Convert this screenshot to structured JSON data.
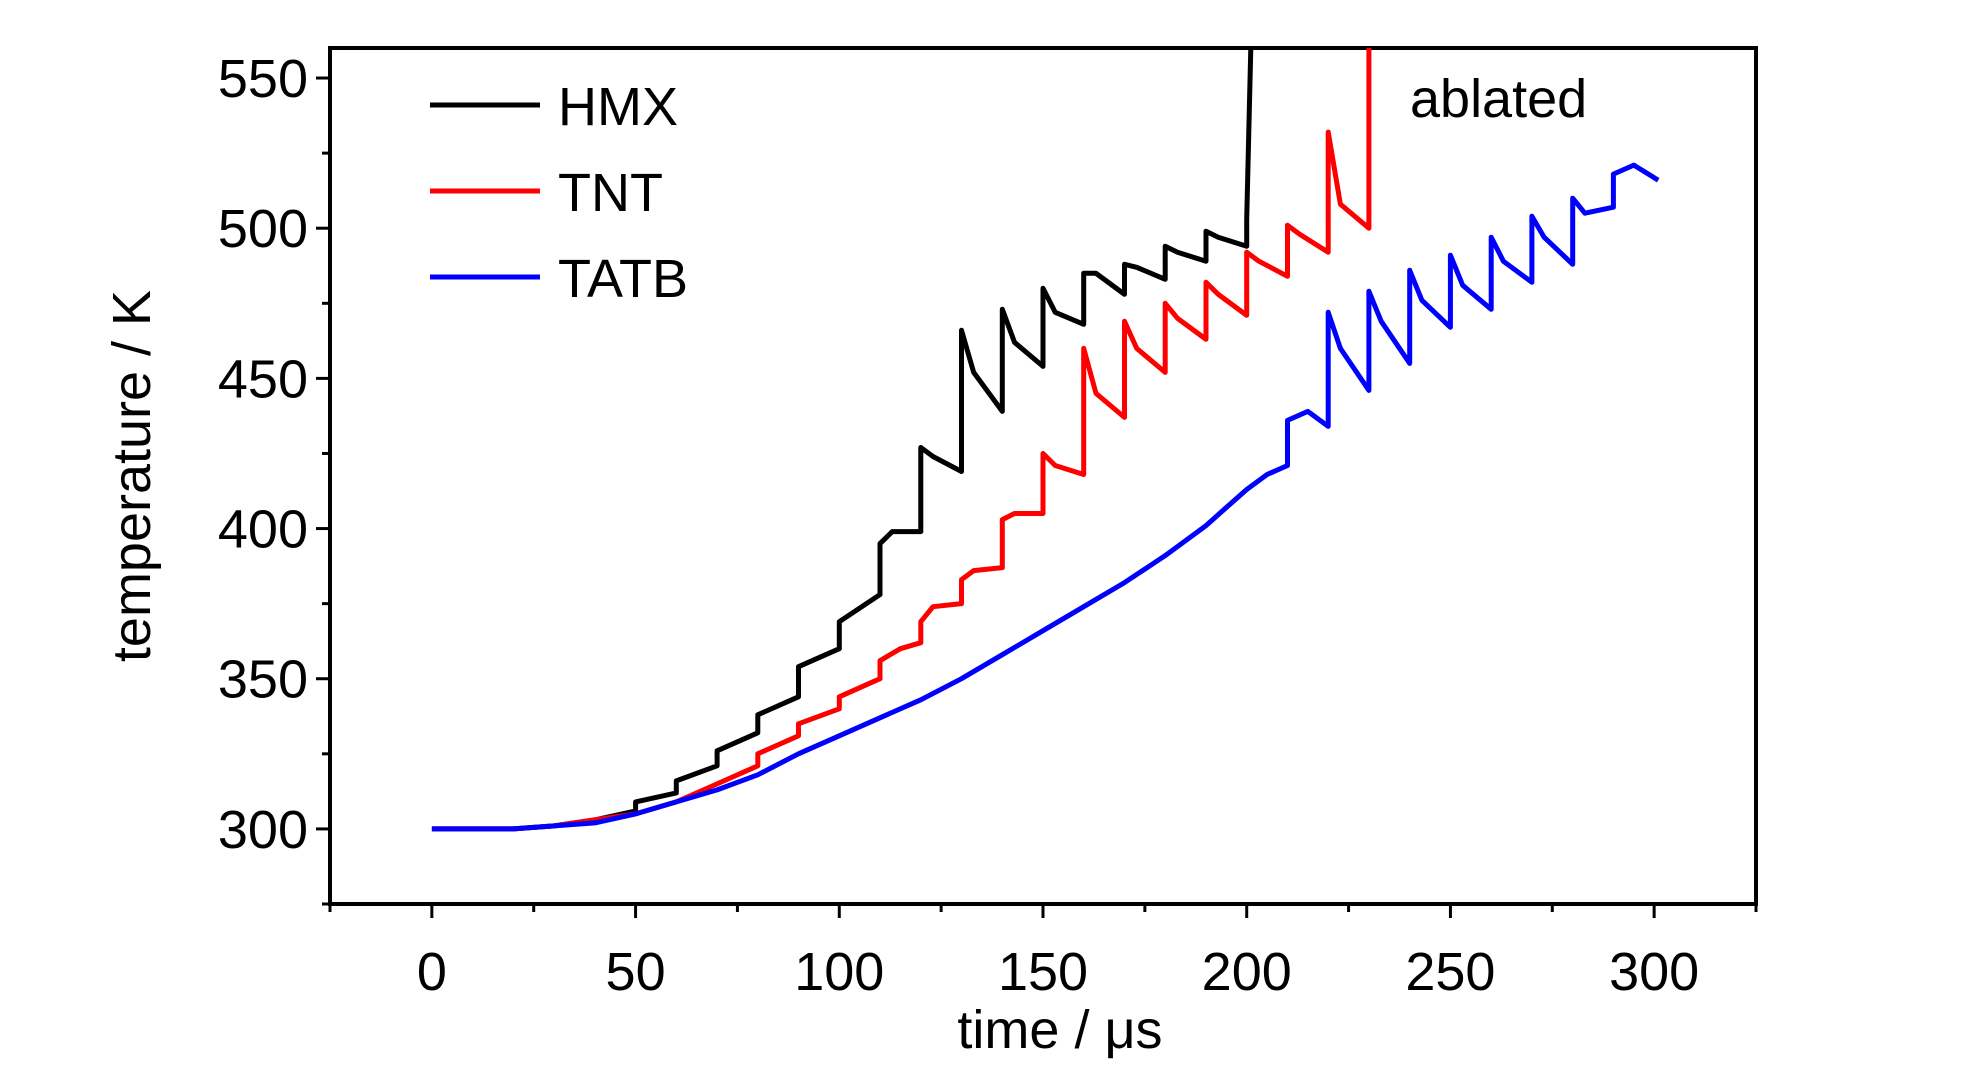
{
  "chart_data": {
    "type": "line",
    "title": "",
    "xlabel": "time / μs",
    "ylabel": "temperature / K",
    "xlim": [
      -25,
      325
    ],
    "ylim": [
      275,
      560
    ],
    "xticks": [
      0,
      50,
      100,
      150,
      200,
      250,
      300
    ],
    "yticks": [
      300,
      350,
      400,
      450,
      500,
      550
    ],
    "grid": false,
    "legend_position": "top-left",
    "annotations": [
      {
        "text": "ablated",
        "x": 258,
        "y": 543
      }
    ],
    "series": [
      {
        "name": "HMX",
        "color": "#000000",
        "x": [
          0,
          20,
          30,
          40,
          50,
          50,
          60,
          60,
          70,
          70,
          80,
          80,
          90,
          90,
          100,
          100,
          110,
          110,
          113,
          120,
          120,
          123,
          130,
          130,
          133,
          140,
          140,
          143,
          150,
          150,
          153,
          160,
          160,
          163,
          170,
          170,
          173,
          180,
          180,
          183,
          190,
          190,
          193,
          200,
          200,
          201
        ],
        "y": [
          300,
          300,
          301,
          303,
          306,
          309,
          312,
          316,
          321,
          326,
          332,
          338,
          344,
          354,
          360,
          369,
          378,
          395,
          399,
          399,
          427,
          424,
          419,
          466,
          452,
          439,
          473,
          462,
          454,
          480,
          472,
          468,
          485,
          485,
          478,
          488,
          487,
          483,
          494,
          492,
          489,
          499,
          497,
          494,
          503,
          560
        ]
      },
      {
        "name": "TNT",
        "color": "#ff0000",
        "x": [
          0,
          20,
          30,
          40,
          50,
          60,
          70,
          80,
          80,
          90,
          90,
          100,
          100,
          110,
          110,
          115,
          120,
          120,
          123,
          130,
          130,
          133,
          140,
          140,
          143,
          150,
          150,
          153,
          160,
          160,
          163,
          170,
          170,
          173,
          180,
          180,
          183,
          190,
          190,
          193,
          200,
          200,
          203,
          210,
          210,
          213,
          220,
          220,
          223,
          230,
          230
        ],
        "y": [
          300,
          300,
          301,
          303,
          305,
          309,
          315,
          321,
          325,
          331,
          335,
          340,
          344,
          350,
          356,
          360,
          362,
          369,
          374,
          375,
          383,
          386,
          387,
          403,
          405,
          405,
          425,
          421,
          418,
          460,
          445,
          437,
          469,
          460,
          452,
          475,
          470,
          463,
          482,
          478,
          471,
          492,
          489,
          484,
          501,
          498,
          492,
          532,
          508,
          500,
          560
        ]
      },
      {
        "name": "TATB",
        "color": "#0000ff",
        "x": [
          0,
          20,
          30,
          40,
          50,
          60,
          70,
          80,
          90,
          100,
          110,
          120,
          130,
          140,
          150,
          160,
          170,
          180,
          185,
          190,
          195,
          200,
          205,
          210,
          210,
          215,
          220,
          220,
          223,
          230,
          230,
          233,
          240,
          240,
          243,
          250,
          250,
          253,
          260,
          260,
          263,
          270,
          270,
          273,
          280,
          280,
          283,
          290,
          290,
          295,
          301
        ],
        "y": [
          300,
          300,
          301,
          302,
          305,
          309,
          313,
          318,
          325,
          331,
          337,
          343,
          350,
          358,
          366,
          374,
          382,
          391,
          396,
          401,
          407,
          413,
          418,
          421,
          436,
          439,
          434,
          472,
          460,
          446,
          479,
          469,
          455,
          486,
          476,
          467,
          491,
          481,
          473,
          497,
          489,
          482,
          504,
          497,
          488,
          510,
          505,
          507,
          518,
          521,
          516
        ]
      }
    ]
  }
}
